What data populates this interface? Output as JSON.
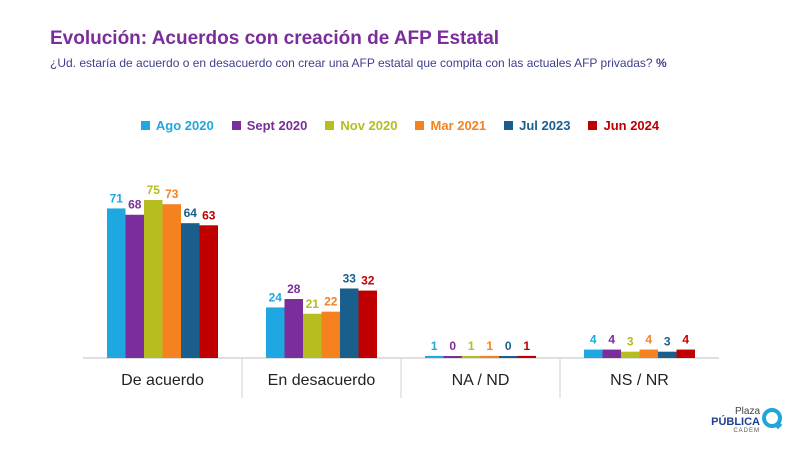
{
  "header": {
    "title": "Evolución: Acuerdos con creación de AFP Estatal",
    "subtitle": "¿Ud. estaría de acuerdo o en desacuerdo con crear una AFP estatal que compita con las actuales AFP privadas?",
    "unit": "%"
  },
  "logo": {
    "line1": "Plaza",
    "line2": "PÚBLICA",
    "line3": "CADEM"
  },
  "chart_data": {
    "type": "bar",
    "categories": [
      "De acuerdo",
      "En desacuerdo",
      "NA / ND",
      "NS / NR"
    ],
    "series": [
      {
        "name": "Ago 2020",
        "color": "#1ea7e0",
        "values": [
          71,
          24,
          1,
          4
        ]
      },
      {
        "name": "Sept 2020",
        "color": "#7b2d9b",
        "values": [
          68,
          28,
          0,
          4
        ]
      },
      {
        "name": "Nov 2020",
        "color": "#b5bd1f",
        "values": [
          75,
          21,
          1,
          3
        ]
      },
      {
        "name": "Mar 2021",
        "color": "#f5821f",
        "values": [
          73,
          22,
          1,
          4
        ]
      },
      {
        "name": "Jul 2023",
        "color": "#1a5f8c",
        "values": [
          64,
          33,
          0,
          3
        ]
      },
      {
        "name": "Jun 2024",
        "color": "#c00000",
        "values": [
          63,
          32,
          1,
          4
        ]
      }
    ],
    "ylim": [
      0,
      75
    ],
    "legend": "top-center",
    "grid": false
  }
}
